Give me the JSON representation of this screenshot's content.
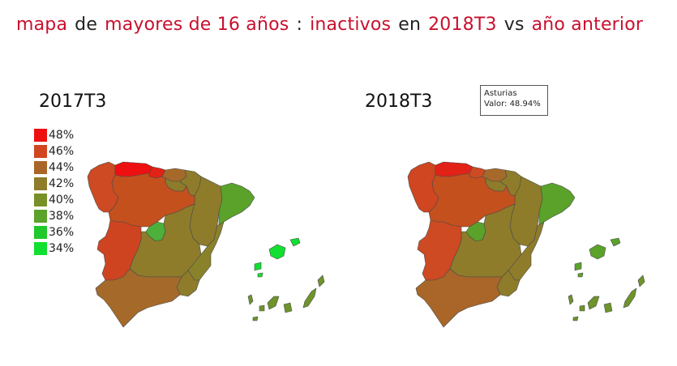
{
  "title": {
    "part1": "mapa",
    "part2": "de",
    "part3": "mayores de 16 años",
    "part4": ":",
    "part5": "inactivos",
    "part6": "en",
    "part7": "2018T3",
    "part8": "vs",
    "part9": "año anterior"
  },
  "maps": [
    {
      "title": "2017T3",
      "region_colors": {
        "galicia": "#cd4a22",
        "asturias": "#ee1010",
        "cantabria": "#e22216",
        "pais_vasco": "#a56a2a",
        "navarra": "#8e7c2a",
        "la_rioja": "#8e7c2a",
        "aragon": "#8e7c2a",
        "cataluna": "#5aa22a",
        "castilla_leon": "#c4501e",
        "madrid": "#4cb03a",
        "castilla_la_mancha": "#8e7c2a",
        "valencia": "#8a822a",
        "extremadura": "#cf4420",
        "andalucia": "#a56a2a",
        "murcia": "#8e7c2a",
        "baleares": "#11e030",
        "canarias": "#6e942a"
      }
    },
    {
      "title": "2018T3",
      "region_colors": {
        "galicia": "#cf4620",
        "asturias": "#e22216",
        "cantabria": "#cd4a22",
        "pais_vasco": "#a56a2a",
        "navarra": "#8e7c2a",
        "la_rioja": "#8e7c2a",
        "aragon": "#8e7c2a",
        "cataluna": "#5aa22a",
        "castilla_leon": "#c4501e",
        "madrid": "#5aa22a",
        "castilla_la_mancha": "#8e7c2a",
        "valencia": "#8e7c2a",
        "extremadura": "#cd4a22",
        "andalucia": "#a96628",
        "murcia": "#8e7c2a",
        "baleares": "#5aa22a",
        "canarias": "#6e942a"
      }
    }
  ],
  "legend": [
    {
      "label": "48%",
      "color": "#ee1010"
    },
    {
      "label": "46%",
      "color": "#cf4620"
    },
    {
      "label": "44%",
      "color": "#a96628"
    },
    {
      "label": "42%",
      "color": "#8e7c2a"
    },
    {
      "label": "40%",
      "color": "#789028"
    },
    {
      "label": "38%",
      "color": "#5aa22a"
    },
    {
      "label": "36%",
      "color": "#20c82c"
    },
    {
      "label": "34%",
      "color": "#11e030"
    }
  ],
  "tooltip": {
    "region": "Asturias",
    "value": "Valor: 48.94%"
  }
}
